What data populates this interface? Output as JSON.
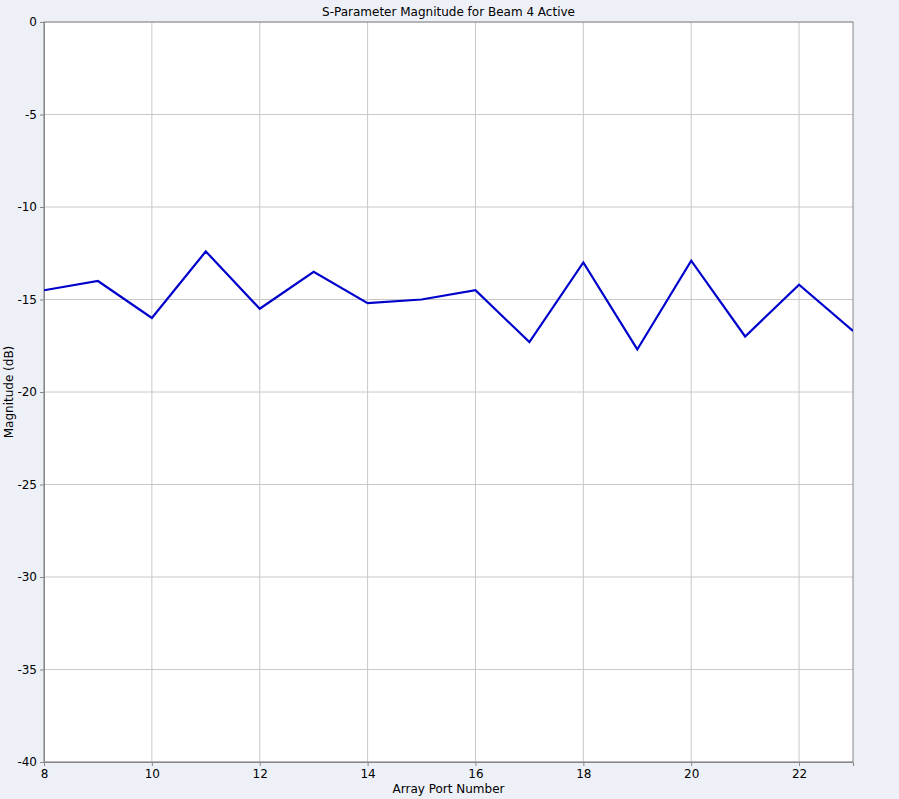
{
  "chart_data": {
    "type": "line",
    "title": "S-Parameter Magnitude for Beam 4 Active",
    "x_label": "Array Port Number",
    "y_label": "Magnitude (dB)",
    "x": [
      8,
      9,
      10,
      11,
      12,
      13,
      14,
      15,
      16,
      17,
      18,
      19,
      20,
      21,
      22,
      23
    ],
    "values": [
      -14.5,
      -14.0,
      -16.0,
      -12.4,
      -15.5,
      -13.5,
      -15.2,
      -15.0,
      -14.5,
      -17.3,
      -13.0,
      -17.7,
      -12.9,
      -17.0,
      -14.2,
      -16.7
    ],
    "color": "#0000cc",
    "xlim": [
      8,
      23
    ],
    "xticks": [
      8,
      10,
      12,
      14,
      16,
      18,
      20,
      22
    ],
    "ylim": [
      -40,
      0
    ],
    "yticks": [
      -40,
      -35,
      -30,
      -25,
      -20,
      -15,
      -10,
      -5,
      0
    ],
    "grid": true
  }
}
